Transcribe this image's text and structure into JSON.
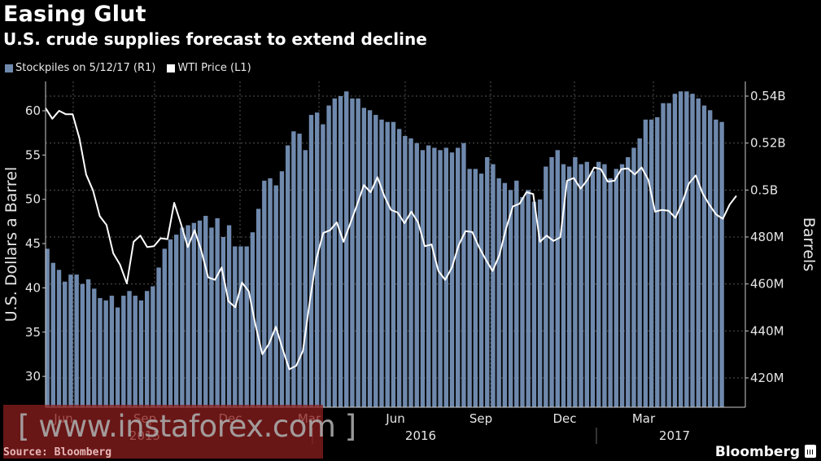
{
  "header": {
    "title": "Easing Glut",
    "subtitle": "U.S. crude supplies forecast to extend decline"
  },
  "legend": [
    {
      "label": "Stockpiles on 5/12/17 (R1)",
      "color": "#6f89ad"
    },
    {
      "label": "WTI Price (L1)",
      "color": "#ffffff"
    }
  ],
  "footer": {
    "source": "Source: Bloomberg",
    "brand": "Bloomberg",
    "watermark": "[ www.instaforex.com ]"
  },
  "chart_data": {
    "type": "bar+line",
    "title": "Easing Glut",
    "subtitle": "U.S. crude supplies forecast to extend decline",
    "left_axis": {
      "label": "U.S. Dollars a Barrel",
      "ylim": [
        26,
        63
      ],
      "ticks": [
        "30",
        "35",
        "40",
        "45",
        "50",
        "55",
        "60"
      ],
      "tick_values": [
        30,
        35,
        40,
        45,
        50,
        55,
        60
      ]
    },
    "right_axis": {
      "label": "Barrels",
      "ylim_millions": [
        405,
        545
      ],
      "ticks": [
        "420M",
        "440M",
        "460M",
        "480M",
        "0.5B",
        "0.52B",
        "0.54B"
      ],
      "tick_values": [
        420,
        440,
        460,
        480,
        500,
        520,
        540
      ]
    },
    "x_month_labels": [
      "Jun",
      "Sep",
      "Dec",
      "Mar",
      "Jun",
      "Sep",
      "Dec",
      "Mar"
    ],
    "x_year_labels": [
      "2015",
      "2016",
      "2017"
    ],
    "grid": true,
    "legend_position": "top-left",
    "series": [
      {
        "name": "Stockpiles on 5/12/17 (R1)",
        "type": "bar",
        "axis": "right",
        "unit": "million barrels",
        "color": "#6f89ad",
        "values": [
          475,
          469,
          466,
          461,
          464,
          464,
          460,
          462,
          458,
          454,
          453,
          455,
          450,
          455,
          457,
          455,
          453,
          457,
          459,
          467,
          475,
          479,
          481,
          484,
          485,
          486,
          487,
          489,
          484,
          488,
          480,
          485,
          476,
          476,
          476,
          482,
          492,
          504,
          505,
          502,
          508,
          519,
          525,
          524,
          517,
          532,
          533,
          528,
          536,
          539,
          540,
          542,
          539,
          539,
          535,
          534,
          532,
          530,
          529,
          529,
          526,
          523,
          522,
          520,
          517,
          519,
          518,
          517,
          518,
          516,
          518,
          520,
          509,
          509,
          507,
          514,
          511,
          505,
          503,
          500,
          504,
          497,
          500,
          495,
          496,
          510,
          514,
          517,
          511,
          510,
          514,
          511,
          512,
          508,
          512,
          511,
          505,
          509,
          511,
          514,
          518,
          522,
          530,
          530,
          531,
          537,
          537,
          541,
          542,
          542,
          541,
          539,
          536,
          534,
          530,
          529
        ]
      },
      {
        "name": "WTI Price (L1)",
        "type": "line",
        "axis": "left",
        "unit": "USD per barrel",
        "color": "#ffffff",
        "values": [
          60.3,
          59.1,
          60.0,
          59.6,
          59.6,
          56.9,
          52.8,
          51.0,
          48.1,
          47.1,
          43.9,
          42.6,
          40.5,
          45.2,
          45.9,
          44.6,
          44.7,
          45.6,
          45.5,
          49.6,
          47.2,
          44.6,
          46.5,
          44.2,
          41.2,
          40.9,
          42.3,
          38.5,
          37.8,
          40.6,
          39.6,
          35.8,
          32.5,
          33.7,
          35.6,
          33.1,
          30.8,
          31.2,
          32.9,
          38.4,
          43.3,
          46.2,
          46.5,
          47.4,
          45.2,
          47.3,
          49.4,
          51.6,
          50.8,
          52.5,
          50.4,
          48.8,
          48.5,
          47.3,
          48.6,
          47.4,
          44.7,
          44.9,
          41.9,
          40.9,
          42.3,
          44.8,
          46.4,
          46.3,
          44.6,
          43.2,
          41.9,
          43.7,
          46.7,
          49.2,
          49.5,
          50.8,
          50.6,
          45.2,
          45.9,
          45.3,
          45.7,
          52.1,
          52.4,
          51.2,
          52.2,
          53.6,
          53.4,
          52.0,
          52.1,
          53.4,
          53.5,
          52.8,
          53.6,
          52.2,
          48.6,
          48.8,
          48.7,
          47.9,
          49.6,
          51.8,
          52.7,
          50.7,
          49.4,
          48.3,
          47.8,
          49.4,
          50.4
        ]
      }
    ]
  }
}
